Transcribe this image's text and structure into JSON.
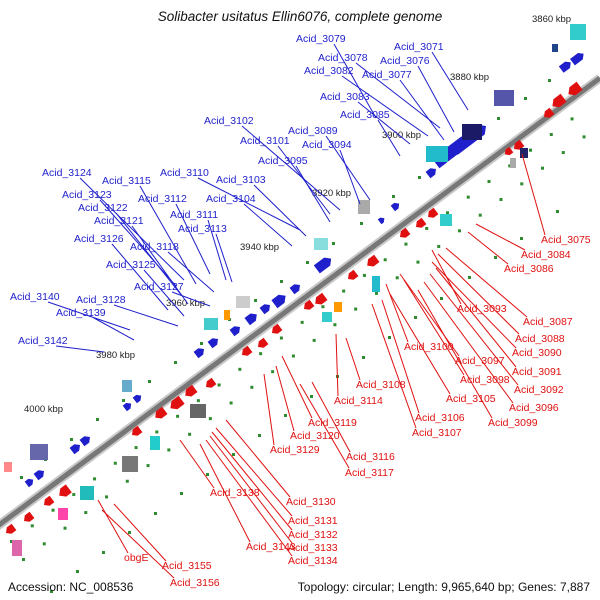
{
  "title": "Solibacter usitatus Ellin6076, complete genome",
  "footer": {
    "accession": "Accession: NC_008536",
    "summary": "Topology: circular; Length: 9,965,640 bp; Genes: 7,887"
  },
  "colors": {
    "forward": "#1f1fcc",
    "reverse": "#e01010",
    "backbone": "#777777",
    "ticks": "#2e8b2e"
  },
  "kbp_labels": [
    "3860 kbp",
    "3880 kbp",
    "3900 kbp",
    "3920 kbp",
    "3940 kbp",
    "3960 kbp",
    "3980 kbp",
    "4000 kbp"
  ],
  "forward_labels": [
    "Acid_3079",
    "Acid_3071",
    "Acid_3078",
    "Acid_3076",
    "Acid_3082",
    "Acid_3077",
    "Acid_3083",
    "Acid_3085",
    "Acid_3102",
    "Acid_3089",
    "Acid_3101",
    "Acid_3094",
    "Acid_3095",
    "Acid_3124",
    "Acid_3115",
    "Acid_3110",
    "Acid_3103",
    "Acid_3123",
    "Acid_3112",
    "Acid_3104",
    "Acid_3122",
    "Acid_3111",
    "Acid_3121",
    "Acid_3113",
    "Acid_3126",
    "Acid_3118",
    "Acid_3125",
    "Acid_3127",
    "Acid_3140",
    "Acid_3128",
    "Acid_3139",
    "Acid_3142"
  ],
  "reverse_labels": [
    "Acid_3075",
    "Acid_3084",
    "Acid_3086",
    "Acid_3093",
    "Acid_3087",
    "Acid_3088",
    "Acid_3100",
    "Acid_3090",
    "Acid_3097",
    "Acid_3091",
    "Acid_3098",
    "Acid_3092",
    "Acid_3108",
    "Acid_3105",
    "Acid_3096",
    "Acid_3114",
    "Acid_3106",
    "Acid_3099",
    "Acid_3119",
    "Acid_3107",
    "Acid_3120",
    "Acid_3129",
    "Acid_3116",
    "Acid_3117",
    "Acid_3138",
    "Acid_3130",
    "Acid_3131",
    "Acid_3132",
    "Acid_3143",
    "Acid_3133",
    "Acid_3134",
    "obgE",
    "Acid_3155",
    "Acid_3156"
  ]
}
